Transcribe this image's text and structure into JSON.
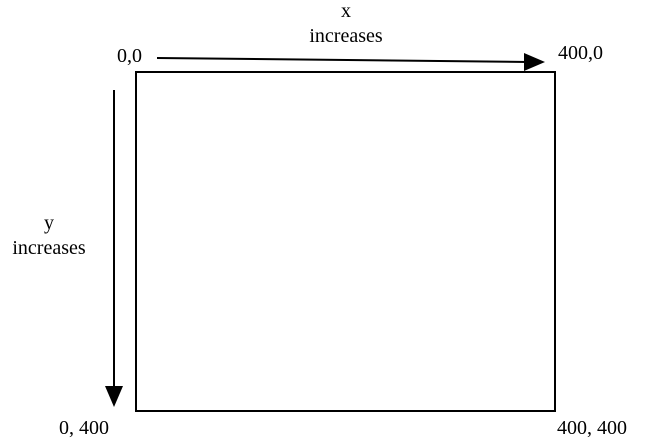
{
  "x_axis": {
    "variable": "x",
    "label": "increases"
  },
  "y_axis": {
    "variable": "y",
    "label": "increases"
  },
  "corners": {
    "top_left": "0,0",
    "top_right": "400,0",
    "bottom_left": "0,  400",
    "bottom_right": "400,  400"
  },
  "colors": {
    "ink": "#000000",
    "background": "#ffffff"
  }
}
